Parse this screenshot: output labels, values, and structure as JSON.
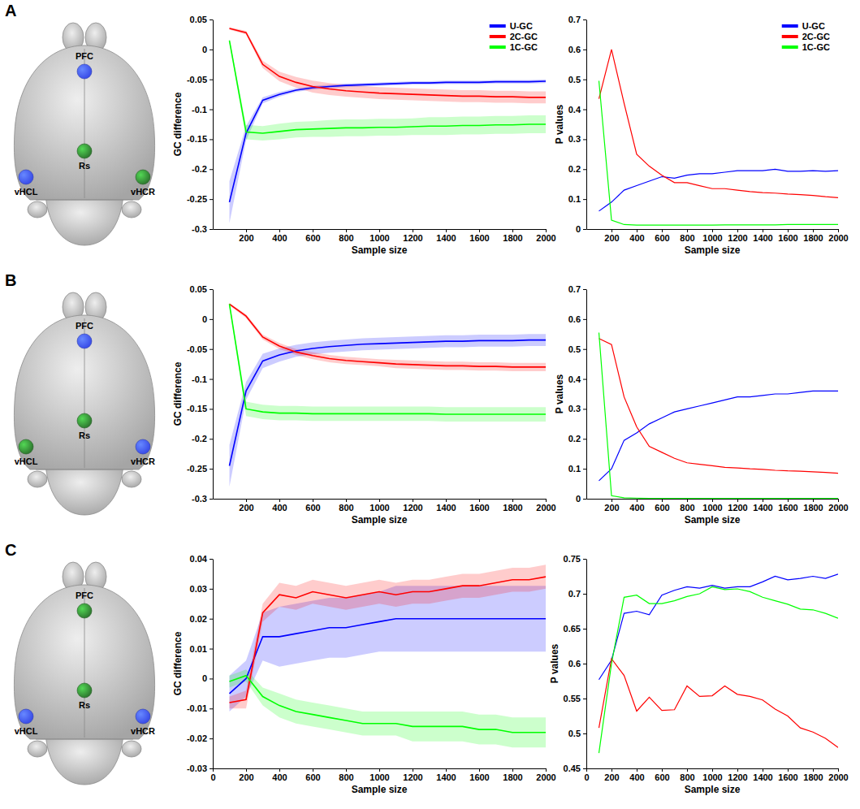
{
  "brains": [
    {
      "letter": "A",
      "nodes": [
        {
          "label": "PFC",
          "color": "#3a4de8"
        },
        {
          "label": "Rs",
          "color": "#2f7a30"
        },
        {
          "label": "vHCL",
          "color": "#3a4de8"
        },
        {
          "label": "vHCR",
          "color": "#2f7a30"
        }
      ]
    },
    {
      "letter": "B",
      "nodes": [
        {
          "label": "PFC",
          "color": "#3a4de8"
        },
        {
          "label": "Rs",
          "color": "#2f7a30"
        },
        {
          "label": "vHCL",
          "color": "#2f7a30"
        },
        {
          "label": "vHCR",
          "color": "#3a4de8"
        }
      ]
    },
    {
      "letter": "C",
      "nodes": [
        {
          "label": "PFC",
          "color": "#2f7a30"
        },
        {
          "label": "Rs",
          "color": "#2f7a30"
        },
        {
          "label": "vHCL",
          "color": "#3a4de8"
        },
        {
          "label": "vHCR",
          "color": "#3a4de8"
        }
      ]
    }
  ],
  "chart_data": [
    {
      "type": "line",
      "x_label": "Sample size",
      "y_label": "GC difference",
      "grid": false,
      "legend": "upper right",
      "x": [
        100,
        200,
        300,
        400,
        500,
        600,
        700,
        800,
        900,
        1000,
        1100,
        1200,
        1300,
        1400,
        1500,
        1600,
        1700,
        1800,
        1900,
        2000
      ],
      "xlim": [
        0,
        2000
      ],
      "xticks": [
        200,
        400,
        600,
        800,
        1000,
        1200,
        1400,
        1600,
        1800,
        2000
      ],
      "ylim": [
        -0.3,
        0.05
      ],
      "yticks": [
        -0.3,
        -0.25,
        -0.2,
        -0.15,
        -0.1,
        -0.05,
        0,
        0.05
      ],
      "series": [
        {
          "name": "U-GC",
          "color": "#0000ff",
          "values": [
            -0.255,
            -0.14,
            -0.085,
            -0.075,
            -0.068,
            -0.064,
            -0.062,
            -0.06,
            -0.059,
            -0.058,
            -0.057,
            -0.056,
            -0.056,
            -0.055,
            -0.055,
            -0.055,
            -0.054,
            -0.054,
            -0.054,
            -0.053
          ],
          "error": [
            0.035,
            0.012,
            0.005,
            0.004,
            0.003,
            0.003,
            0.003,
            0.003,
            0.003,
            0.003,
            0.003,
            0.003,
            0.003,
            0.003,
            0.003,
            0.003,
            0.003,
            0.003,
            0.003,
            0.003
          ]
        },
        {
          "name": "2C-GC",
          "color": "#ff0000",
          "values": [
            0.035,
            0.028,
            -0.025,
            -0.045,
            -0.055,
            -0.062,
            -0.066,
            -0.069,
            -0.071,
            -0.073,
            -0.074,
            -0.075,
            -0.076,
            -0.077,
            -0.078,
            -0.078,
            -0.079,
            -0.079,
            -0.08,
            -0.08
          ],
          "error": [
            0.002,
            0.003,
            0.006,
            0.008,
            0.009,
            0.01,
            0.01,
            0.01,
            0.01,
            0.01,
            0.01,
            0.01,
            0.01,
            0.01,
            0.01,
            0.01,
            0.01,
            0.01,
            0.01,
            0.01
          ]
        },
        {
          "name": "1C-GC",
          "color": "#00ff00",
          "values": [
            0.015,
            -0.138,
            -0.14,
            -0.137,
            -0.134,
            -0.133,
            -0.132,
            -0.131,
            -0.131,
            -0.13,
            -0.13,
            -0.129,
            -0.128,
            -0.128,
            -0.127,
            -0.127,
            -0.126,
            -0.126,
            -0.125,
            -0.125
          ],
          "error": [
            0.003,
            0.012,
            0.012,
            0.013,
            0.013,
            0.013,
            0.014,
            0.014,
            0.014,
            0.014,
            0.014,
            0.014,
            0.015,
            0.015,
            0.015,
            0.015,
            0.015,
            0.015,
            0.015,
            0.015
          ]
        }
      ]
    },
    {
      "type": "line",
      "x_label": "Sample size",
      "y_label": "P values",
      "grid": false,
      "legend": "upper right",
      "x": [
        100,
        200,
        300,
        400,
        500,
        600,
        700,
        800,
        900,
        1000,
        1100,
        1200,
        1300,
        1400,
        1500,
        1600,
        1700,
        1800,
        1900,
        2000
      ],
      "xlim": [
        0,
        2000
      ],
      "xticks": [
        200,
        400,
        600,
        800,
        1000,
        1200,
        1400,
        1600,
        1800,
        2000
      ],
      "ylim": [
        0,
        0.7
      ],
      "yticks": [
        0,
        0.1,
        0.2,
        0.3,
        0.4,
        0.5,
        0.6,
        0.7
      ],
      "series": [
        {
          "name": "U-GC",
          "color": "#0000ff",
          "values": [
            0.06,
            0.09,
            0.13,
            0.145,
            0.16,
            0.175,
            0.17,
            0.18,
            0.185,
            0.185,
            0.19,
            0.195,
            0.195,
            0.195,
            0.2,
            0.193,
            0.193,
            0.195,
            0.193,
            0.195
          ]
        },
        {
          "name": "2C-GC",
          "color": "#ff0000",
          "values": [
            0.435,
            0.6,
            0.42,
            0.25,
            0.21,
            0.18,
            0.155,
            0.155,
            0.145,
            0.135,
            0.135,
            0.13,
            0.125,
            0.122,
            0.12,
            0.117,
            0.115,
            0.112,
            0.108,
            0.105
          ]
        },
        {
          "name": "1C-GC",
          "color": "#00ff00",
          "values": [
            0.495,
            0.03,
            0.015,
            0.013,
            0.013,
            0.013,
            0.013,
            0.013,
            0.013,
            0.013,
            0.014,
            0.014,
            0.014,
            0.014,
            0.014,
            0.015,
            0.015,
            0.015,
            0.015,
            0.015
          ]
        }
      ]
    },
    {
      "type": "line",
      "x_label": "Sample size",
      "y_label": "GC difference",
      "grid": false,
      "legend": false,
      "x": [
        100,
        200,
        300,
        400,
        500,
        600,
        700,
        800,
        900,
        1000,
        1100,
        1200,
        1300,
        1400,
        1500,
        1600,
        1700,
        1800,
        1900,
        2000
      ],
      "xlim": [
        0,
        2000
      ],
      "xticks": [
        200,
        400,
        600,
        800,
        1000,
        1200,
        1400,
        1600,
        1800,
        2000
      ],
      "ylim": [
        -0.3,
        0.05
      ],
      "yticks": [
        -0.3,
        -0.25,
        -0.2,
        -0.15,
        -0.1,
        -0.05,
        0,
        0.05
      ],
      "series": [
        {
          "name": "U-GC",
          "color": "#0000ff",
          "values": [
            -0.245,
            -0.12,
            -0.07,
            -0.06,
            -0.053,
            -0.049,
            -0.046,
            -0.044,
            -0.042,
            -0.041,
            -0.04,
            -0.039,
            -0.038,
            -0.037,
            -0.037,
            -0.036,
            -0.036,
            -0.036,
            -0.035,
            -0.035
          ],
          "error": [
            0.035,
            0.015,
            0.012,
            0.011,
            0.01,
            0.01,
            0.01,
            0.01,
            0.01,
            0.01,
            0.01,
            0.01,
            0.01,
            0.01,
            0.01,
            0.01,
            0.01,
            0.01,
            0.01,
            0.01
          ]
        },
        {
          "name": "2C-GC",
          "color": "#ff0000",
          "values": [
            0.025,
            0.005,
            -0.03,
            -0.045,
            -0.055,
            -0.061,
            -0.066,
            -0.069,
            -0.071,
            -0.073,
            -0.075,
            -0.076,
            -0.077,
            -0.078,
            -0.078,
            -0.079,
            -0.079,
            -0.08,
            -0.08,
            -0.08
          ],
          "error": [
            0.002,
            0.003,
            0.004,
            0.005,
            0.005,
            0.006,
            0.006,
            0.006,
            0.006,
            0.006,
            0.007,
            0.007,
            0.007,
            0.007,
            0.007,
            0.007,
            0.007,
            0.007,
            0.007,
            0.007
          ]
        },
        {
          "name": "1C-GC",
          "color": "#00ff00",
          "values": [
            0.025,
            -0.15,
            -0.155,
            -0.157,
            -0.157,
            -0.158,
            -0.158,
            -0.158,
            -0.158,
            -0.158,
            -0.158,
            -0.158,
            -0.158,
            -0.159,
            -0.159,
            -0.159,
            -0.159,
            -0.159,
            -0.159,
            -0.159
          ],
          "error": [
            0.003,
            0.012,
            0.012,
            0.012,
            0.012,
            0.012,
            0.012,
            0.012,
            0.012,
            0.012,
            0.012,
            0.012,
            0.012,
            0.012,
            0.012,
            0.012,
            0.012,
            0.012,
            0.012,
            0.012
          ]
        }
      ]
    },
    {
      "type": "line",
      "x_label": "Sample size",
      "y_label": "P values",
      "grid": false,
      "legend": false,
      "x": [
        100,
        200,
        300,
        400,
        500,
        600,
        700,
        800,
        900,
        1000,
        1100,
        1200,
        1300,
        1400,
        1500,
        1600,
        1700,
        1800,
        1900,
        2000
      ],
      "xlim": [
        0,
        2000
      ],
      "xticks": [
        200,
        400,
        600,
        800,
        1000,
        1200,
        1400,
        1600,
        1800,
        2000
      ],
      "ylim": [
        0,
        0.7
      ],
      "yticks": [
        0,
        0.1,
        0.2,
        0.3,
        0.4,
        0.5,
        0.6,
        0.7
      ],
      "series": [
        {
          "name": "U-GC",
          "color": "#0000ff",
          "values": [
            0.06,
            0.1,
            0.195,
            0.22,
            0.25,
            0.27,
            0.29,
            0.3,
            0.31,
            0.32,
            0.33,
            0.34,
            0.34,
            0.345,
            0.35,
            0.35,
            0.355,
            0.36,
            0.36,
            0.36
          ]
        },
        {
          "name": "2C-GC",
          "color": "#ff0000",
          "values": [
            0.535,
            0.515,
            0.34,
            0.24,
            0.175,
            0.155,
            0.135,
            0.12,
            0.115,
            0.11,
            0.105,
            0.103,
            0.1,
            0.098,
            0.095,
            0.093,
            0.092,
            0.09,
            0.088,
            0.085
          ]
        },
        {
          "name": "1C-GC",
          "color": "#00ff00",
          "values": [
            0.555,
            0.01,
            0.003,
            0.002,
            0.001,
            0.001,
            0.001,
            0.001,
            0.001,
            0.001,
            0.001,
            0.001,
            0.001,
            0.001,
            0.001,
            0.001,
            0.001,
            0.001,
            0.001,
            0.001
          ]
        }
      ]
    },
    {
      "type": "line",
      "x_label": "Sample size",
      "y_label": "GC difference",
      "grid": false,
      "legend": false,
      "x": [
        100,
        200,
        300,
        400,
        500,
        600,
        700,
        800,
        900,
        1000,
        1100,
        1200,
        1300,
        1400,
        1500,
        1600,
        1700,
        1800,
        1900,
        2000
      ],
      "xlim": [
        0,
        2000
      ],
      "xticks": [
        0,
        200,
        400,
        600,
        800,
        1000,
        1200,
        1400,
        1600,
        1800,
        2000
      ],
      "ylim": [
        -0.03,
        0.04
      ],
      "yticks": [
        -0.03,
        -0.02,
        -0.01,
        0,
        0.01,
        0.02,
        0.03,
        0.04
      ],
      "series": [
        {
          "name": "U-GC",
          "color": "#0000ff",
          "values": [
            -0.005,
            0.0,
            0.014,
            0.014,
            0.015,
            0.016,
            0.017,
            0.017,
            0.018,
            0.019,
            0.02,
            0.02,
            0.02,
            0.02,
            0.02,
            0.02,
            0.02,
            0.02,
            0.02,
            0.02
          ],
          "error": [
            0.006,
            0.006,
            0.008,
            0.01,
            0.01,
            0.01,
            0.01,
            0.01,
            0.01,
            0.01,
            0.011,
            0.011,
            0.011,
            0.011,
            0.011,
            0.011,
            0.011,
            0.011,
            0.011,
            0.011
          ]
        },
        {
          "name": "2C-GC",
          "color": "#ff0000",
          "values": [
            -0.008,
            -0.007,
            0.022,
            0.028,
            0.027,
            0.029,
            0.028,
            0.027,
            0.028,
            0.029,
            0.028,
            0.029,
            0.029,
            0.03,
            0.031,
            0.031,
            0.032,
            0.033,
            0.033,
            0.034
          ],
          "error": [
            0.002,
            0.003,
            0.003,
            0.004,
            0.004,
            0.004,
            0.004,
            0.004,
            0.004,
            0.004,
            0.004,
            0.004,
            0.004,
            0.004,
            0.004,
            0.004,
            0.004,
            0.004,
            0.004,
            0.004
          ]
        },
        {
          "name": "1C-GC",
          "color": "#00ff00",
          "values": [
            -0.001,
            0.001,
            -0.006,
            -0.009,
            -0.011,
            -0.012,
            -0.013,
            -0.014,
            -0.015,
            -0.015,
            -0.015,
            -0.016,
            -0.016,
            -0.016,
            -0.016,
            -0.017,
            -0.017,
            -0.018,
            -0.018,
            -0.018
          ],
          "error": [
            0.002,
            0.002,
            0.003,
            0.004,
            0.004,
            0.004,
            0.004,
            0.004,
            0.004,
            0.004,
            0.004,
            0.005,
            0.005,
            0.005,
            0.005,
            0.005,
            0.005,
            0.005,
            0.005,
            0.005
          ]
        }
      ]
    },
    {
      "type": "line",
      "x_label": "Sample size",
      "y_label": "P values",
      "grid": false,
      "legend": false,
      "x": [
        100,
        200,
        300,
        400,
        500,
        600,
        700,
        800,
        900,
        1000,
        1100,
        1200,
        1300,
        1400,
        1500,
        1600,
        1700,
        1800,
        1900,
        2000
      ],
      "xlim": [
        0,
        2000
      ],
      "xticks": [
        0,
        200,
        400,
        600,
        800,
        1000,
        1200,
        1400,
        1600,
        1800,
        2000
      ],
      "ylim": [
        0.45,
        0.75
      ],
      "yticks": [
        0.45,
        0.5,
        0.55,
        0.6,
        0.65,
        0.7,
        0.75
      ],
      "series": [
        {
          "name": "U-GC",
          "color": "#0000ff",
          "values": [
            0.577,
            0.605,
            0.672,
            0.675,
            0.67,
            0.698,
            0.705,
            0.71,
            0.708,
            0.712,
            0.708,
            0.71,
            0.71,
            0.717,
            0.725,
            0.72,
            0.722,
            0.725,
            0.722,
            0.728
          ]
        },
        {
          "name": "2C-GC",
          "color": "#ff0000",
          "values": [
            0.508,
            0.607,
            0.583,
            0.532,
            0.552,
            0.533,
            0.534,
            0.568,
            0.553,
            0.554,
            0.568,
            0.556,
            0.553,
            0.548,
            0.535,
            0.525,
            0.508,
            0.502,
            0.493,
            0.48
          ]
        },
        {
          "name": "1C-GC",
          "color": "#00ff00",
          "values": [
            0.472,
            0.6,
            0.695,
            0.698,
            0.686,
            0.686,
            0.69,
            0.696,
            0.7,
            0.71,
            0.706,
            0.707,
            0.703,
            0.695,
            0.69,
            0.685,
            0.678,
            0.677,
            0.672,
            0.665
          ]
        }
      ]
    }
  ]
}
